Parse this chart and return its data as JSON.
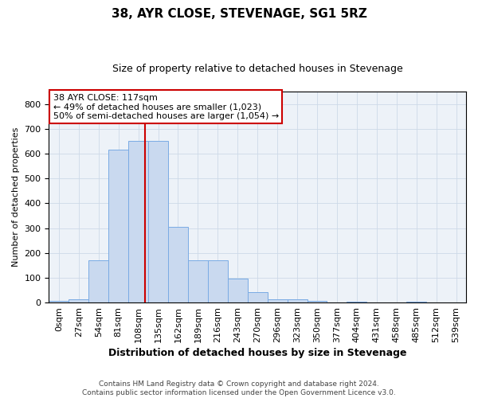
{
  "title": "38, AYR CLOSE, STEVENAGE, SG1 5RZ",
  "subtitle": "Size of property relative to detached houses in Stevenage",
  "xlabel": "Distribution of detached houses by size in Stevenage",
  "ylabel": "Number of detached properties",
  "bins": [
    "0sqm",
    "27sqm",
    "54sqm",
    "81sqm",
    "108sqm",
    "135sqm",
    "162sqm",
    "189sqm",
    "216sqm",
    "243sqm",
    "270sqm",
    "296sqm",
    "323sqm",
    "350sqm",
    "377sqm",
    "404sqm",
    "431sqm",
    "458sqm",
    "485sqm",
    "512sqm",
    "539sqm"
  ],
  "bar_values": [
    7,
    13,
    170,
    615,
    650,
    650,
    305,
    170,
    170,
    97,
    42,
    15,
    15,
    8,
    0,
    5,
    0,
    0,
    5,
    0,
    0
  ],
  "bar_color": "#c9d9ef",
  "bar_edge_color": "#7aabe4",
  "vline_color": "#cc0000",
  "vline_x": 4.33,
  "annotation_line1": "38 AYR CLOSE: 117sqm",
  "annotation_line2": "← 49% of detached houses are smaller (1,023)",
  "annotation_line3": "50% of semi-detached houses are larger (1,054) →",
  "annotation_box_color": "#ffffff",
  "annotation_box_edge": "#cc0000",
  "grid_color": "#cdd9e8",
  "background_color": "#edf2f8",
  "ylim": [
    0,
    850
  ],
  "yticks": [
    0,
    100,
    200,
    300,
    400,
    500,
    600,
    700,
    800
  ],
  "title_fontsize": 11,
  "subtitle_fontsize": 9,
  "xlabel_fontsize": 9,
  "ylabel_fontsize": 8,
  "tick_fontsize": 8,
  "annotation_fontsize": 8,
  "footer_line1": "Contains HM Land Registry data © Crown copyright and database right 2024.",
  "footer_line2": "Contains public sector information licensed under the Open Government Licence v3.0.",
  "footer_fontsize": 6.5
}
